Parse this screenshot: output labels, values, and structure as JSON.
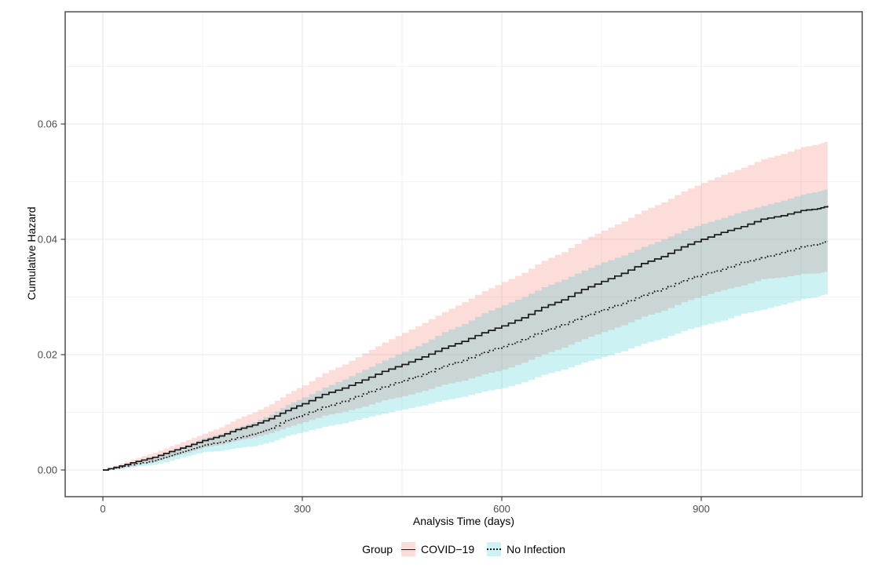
{
  "chart_data": {
    "type": "line",
    "title": "",
    "x_axis": {
      "label": "Analysis Time (days)",
      "ticks": [
        0,
        300,
        600,
        900
      ],
      "tick_labels": [
        "0",
        "300",
        "600",
        "900"
      ],
      "minor_ticks": [
        150,
        450,
        750,
        1050
      ],
      "range_days": [
        -57,
        1142
      ]
    },
    "y_axis": {
      "label": "Cumulative Hazard",
      "ticks": [
        0,
        0.02,
        0.04,
        0.06
      ],
      "tick_labels": [
        "0.00",
        "0.02",
        "0.04",
        "0.06"
      ],
      "minor_ticks": [
        0.01,
        0.03,
        0.05,
        0.07
      ],
      "range": [
        -0.0046,
        0.0795
      ]
    },
    "legend": {
      "title": "Group",
      "position": "bottom"
    },
    "grid": "on",
    "days": [
      0,
      25,
      50,
      75,
      100,
      125,
      150,
      175,
      200,
      225,
      250,
      275,
      300,
      330,
      360,
      390,
      420,
      450,
      480,
      510,
      540,
      570,
      600,
      630,
      660,
      690,
      720,
      750,
      780,
      810,
      840,
      870,
      900,
      930,
      960,
      990,
      1020,
      1050,
      1075,
      1090
    ],
    "series": [
      {
        "name": "COVID−19",
        "line_style": "solid",
        "line_color": "#1a1a1a",
        "band_fill": "rgba(248,118,109,0.25)",
        "est": [
          0.0,
          0.0007,
          0.0015,
          0.0022,
          0.0032,
          0.0041,
          0.0051,
          0.0059,
          0.007,
          0.0078,
          0.0089,
          0.0103,
          0.0115,
          0.0131,
          0.0142,
          0.0156,
          0.0171,
          0.0183,
          0.0196,
          0.0211,
          0.0223,
          0.0238,
          0.025,
          0.0264,
          0.0282,
          0.0295,
          0.0313,
          0.0327,
          0.0341,
          0.0358,
          0.037,
          0.0387,
          0.04,
          0.0412,
          0.0422,
          0.0435,
          0.0441,
          0.045,
          0.0453,
          0.0458
        ],
        "lower": [
          0.0,
          0.0003,
          0.0009,
          0.0014,
          0.0023,
          0.003,
          0.0039,
          0.0044,
          0.0051,
          0.0056,
          0.0064,
          0.0074,
          0.0083,
          0.0094,
          0.0101,
          0.011,
          0.0121,
          0.0128,
          0.0137,
          0.0148,
          0.0155,
          0.0166,
          0.0174,
          0.0186,
          0.0201,
          0.0212,
          0.0227,
          0.0239,
          0.0251,
          0.0266,
          0.0276,
          0.0291,
          0.0302,
          0.0312,
          0.032,
          0.0331,
          0.0334,
          0.034,
          0.0341,
          0.0345
        ],
        "upper": [
          0.0,
          0.0011,
          0.0021,
          0.003,
          0.0041,
          0.0052,
          0.0063,
          0.0074,
          0.0089,
          0.01,
          0.0114,
          0.0132,
          0.0147,
          0.0168,
          0.0183,
          0.0202,
          0.0221,
          0.0238,
          0.0255,
          0.0274,
          0.0291,
          0.031,
          0.0326,
          0.0342,
          0.0363,
          0.0378,
          0.0399,
          0.0415,
          0.0431,
          0.045,
          0.0464,
          0.0483,
          0.0498,
          0.0512,
          0.0524,
          0.0539,
          0.0548,
          0.056,
          0.0565,
          0.0571
        ]
      },
      {
        "name": "No Infection",
        "line_style": "dotted",
        "line_color": "#1a1a1a",
        "band_fill": "rgba(0,191,196,0.20)",
        "est": [
          0.0,
          0.0005,
          0.0011,
          0.0016,
          0.0025,
          0.0034,
          0.0043,
          0.0048,
          0.0056,
          0.0062,
          0.0072,
          0.0086,
          0.0096,
          0.0109,
          0.0119,
          0.0132,
          0.0144,
          0.0155,
          0.0166,
          0.018,
          0.019,
          0.0204,
          0.0214,
          0.0226,
          0.0241,
          0.0252,
          0.0266,
          0.0278,
          0.0289,
          0.0303,
          0.0314,
          0.0328,
          0.0339,
          0.0348,
          0.036,
          0.0368,
          0.0377,
          0.0387,
          0.0392,
          0.0397
        ],
        "lower": [
          0.0,
          0.0002,
          0.0006,
          0.0009,
          0.0016,
          0.0024,
          0.0031,
          0.0033,
          0.0038,
          0.0041,
          0.0048,
          0.0059,
          0.0066,
          0.0075,
          0.0081,
          0.009,
          0.0098,
          0.0105,
          0.0112,
          0.0121,
          0.0127,
          0.0136,
          0.0142,
          0.0152,
          0.0165,
          0.0174,
          0.0186,
          0.0196,
          0.0206,
          0.0219,
          0.0228,
          0.0241,
          0.0251,
          0.0259,
          0.0271,
          0.0278,
          0.0287,
          0.0296,
          0.0301,
          0.0306
        ],
        "upper": [
          0.0,
          0.0008,
          0.0016,
          0.0023,
          0.0034,
          0.0044,
          0.0055,
          0.0063,
          0.0074,
          0.0083,
          0.0096,
          0.0113,
          0.0126,
          0.0143,
          0.0157,
          0.0174,
          0.019,
          0.0205,
          0.022,
          0.0239,
          0.0253,
          0.0272,
          0.0286,
          0.03,
          0.0317,
          0.033,
          0.0346,
          0.036,
          0.0372,
          0.0387,
          0.04,
          0.0415,
          0.0427,
          0.0437,
          0.0449,
          0.0458,
          0.0467,
          0.0478,
          0.0483,
          0.0488
        ]
      }
    ],
    "colors": {
      "grid_major": "#e8e8e8",
      "grid_minor": "#f3f3f3",
      "panel_border": "#4d4d4d",
      "tick_mark": "#333333",
      "tick_label": "#4d4d4d"
    }
  }
}
